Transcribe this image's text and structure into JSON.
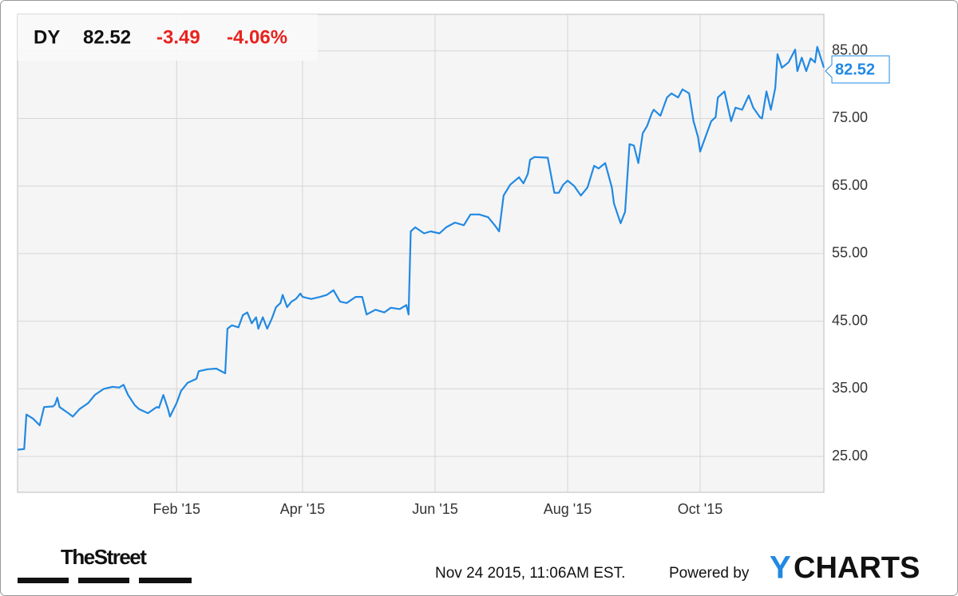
{
  "chart_data": {
    "type": "line",
    "header": {
      "ticker": "DY",
      "price": "82.52",
      "change": "-3.49",
      "change_pct": "-4.06%"
    },
    "footer": {
      "timestamp": "Nov 24 2015, 11:06AM EST.",
      "powered": "Powered by",
      "brand_y": "Y",
      "brand_rest": "CHARTS",
      "source": "TheStreet"
    },
    "color": "#2189e3",
    "x": [
      0,
      3,
      4,
      7,
      10,
      12,
      16,
      17,
      18,
      19,
      23,
      25,
      28,
      32,
      35,
      39,
      43,
      46,
      48,
      50,
      53,
      55,
      59,
      63,
      64,
      66,
      68,
      69,
      72,
      74,
      77,
      81,
      82,
      86,
      90,
      94,
      95,
      97,
      100,
      102,
      104,
      106,
      108,
      109,
      111,
      113,
      115,
      117,
      119,
      120,
      122,
      124,
      126,
      128,
      129,
      133,
      137,
      140,
      143,
      146,
      149,
      153,
      156,
      158,
      162,
      166,
      169,
      173,
      176,
      177,
      178,
      180,
      184,
      187,
      191,
      194,
      198,
      202,
      205,
      209,
      213,
      216,
      218,
      220,
      223,
      227,
      229,
      231,
      232,
      234,
      240,
      243,
      245,
      247,
      249,
      252,
      255,
      258,
      261,
      263,
      266,
      269,
      270,
      273,
      275,
      277,
      279,
      281,
      283,
      285,
      287,
      288,
      291,
      294,
      296,
      299,
      301,
      304,
      306,
      308,
      309,
      312,
      314,
      316,
      317,
      320,
      323,
      325,
      328,
      331,
      333,
      336,
      337,
      339,
      341,
      343,
      344,
      346,
      349,
      352,
      353,
      355,
      357,
      359,
      361,
      362,
      365
    ],
    "values": [
      26.0,
      26.1,
      31.2,
      30.6,
      29.6,
      32.3,
      32.4,
      32.7,
      33.7,
      32.3,
      31.4,
      30.9,
      32.0,
      32.9,
      34.1,
      35.0,
      35.3,
      35.2,
      35.6,
      34.1,
      32.6,
      32.0,
      31.4,
      32.3,
      32.2,
      34.1,
      32.1,
      30.9,
      32.9,
      34.7,
      35.9,
      36.5,
      37.6,
      37.9,
      38.0,
      37.3,
      43.9,
      44.4,
      44.1,
      45.9,
      46.3,
      44.7,
      45.6,
      43.9,
      45.6,
      43.9,
      45.3,
      47.1,
      47.7,
      48.9,
      47.1,
      47.9,
      48.3,
      49.1,
      48.6,
      48.3,
      48.6,
      48.9,
      49.6,
      47.9,
      47.7,
      48.6,
      48.6,
      46.0,
      46.7,
      46.3,
      47.0,
      46.8,
      47.4,
      46.0,
      58.3,
      58.9,
      58.0,
      58.3,
      58.0,
      58.9,
      59.6,
      59.2,
      60.8,
      60.8,
      60.4,
      59.2,
      58.3,
      63.6,
      65.2,
      66.3,
      65.4,
      66.8,
      68.9,
      69.3,
      69.2,
      64.0,
      64.0,
      65.2,
      65.8,
      65.0,
      63.6,
      64.8,
      68.0,
      67.6,
      68.4,
      64.8,
      62.4,
      59.5,
      61.2,
      71.2,
      71.0,
      68.4,
      72.8,
      73.9,
      75.7,
      76.3,
      75.4,
      78.1,
      78.7,
      78.1,
      79.3,
      78.7,
      74.6,
      72.3,
      70.1,
      72.8,
      74.6,
      75.2,
      78.1,
      79.0,
      74.6,
      76.6,
      76.3,
      78.4,
      76.6,
      75.2,
      75.0,
      79.0,
      76.3,
      79.5,
      84.5,
      82.5,
      83.3,
      85.2,
      82.0,
      84.0,
      82.0,
      83.9,
      83.3,
      85.6,
      82.52
    ],
    "xlim": [
      0,
      365
    ],
    "xticks": [
      {
        "value": 72,
        "label": "Feb '15"
      },
      {
        "value": 129,
        "label": "Apr '15"
      },
      {
        "value": 189,
        "label": "Jun '15"
      },
      {
        "value": 249,
        "label": "Aug '15"
      },
      {
        "value": 309,
        "label": "Oct '15"
      }
    ],
    "ylim": [
      19.7,
      90.4
    ],
    "yticks": [
      {
        "value": 25,
        "label": "25.00"
      },
      {
        "value": 35,
        "label": "35.00"
      },
      {
        "value": 45,
        "label": "45.00"
      },
      {
        "value": 55,
        "label": "55.00"
      },
      {
        "value": 65,
        "label": "65.00"
      },
      {
        "value": 75,
        "label": "75.00"
      },
      {
        "value": 85,
        "label": "85.00"
      }
    ],
    "grid": true
  }
}
